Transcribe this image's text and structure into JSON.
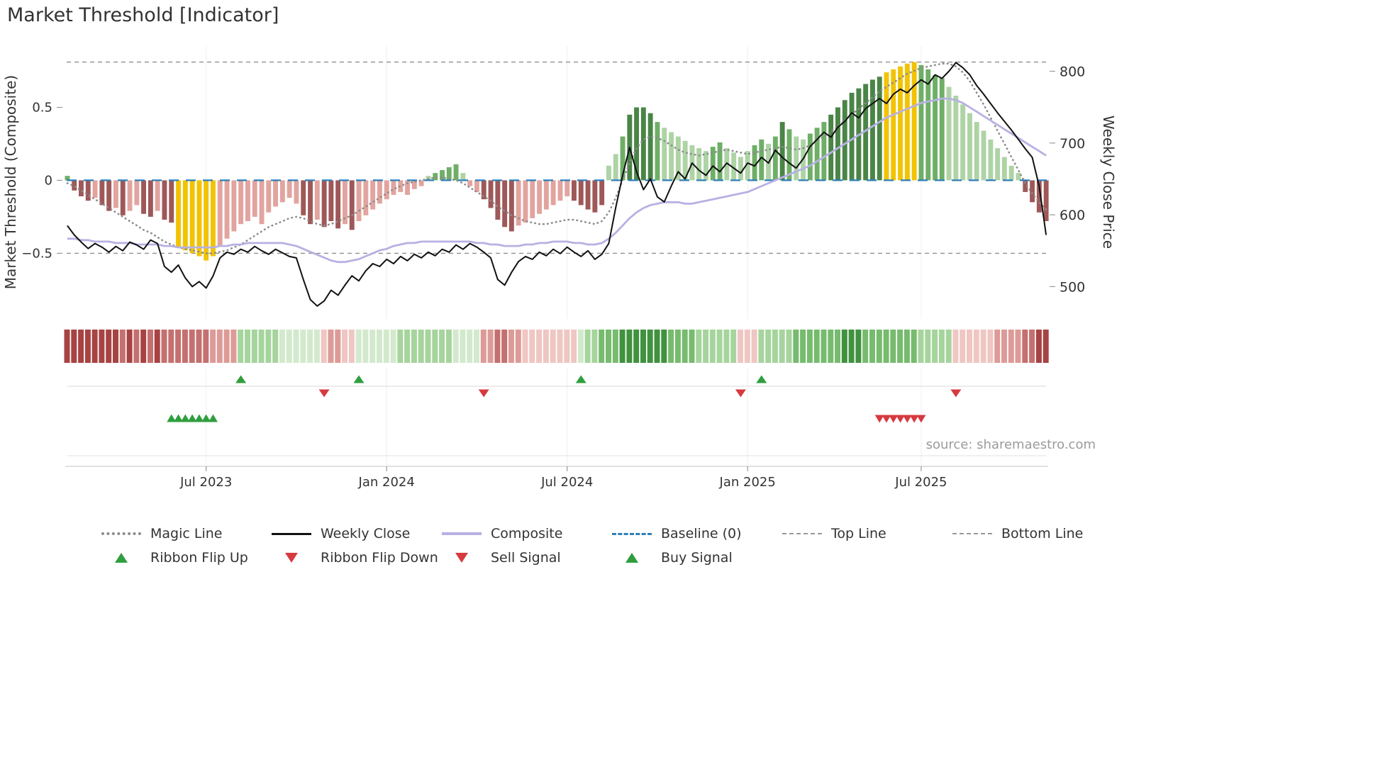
{
  "title": "Market Threshold [Indicator]",
  "source": "source: sharemaestro.com",
  "axes": {
    "left_label": "Market Threshold (Composite)",
    "right_label": "Weekly Close Price",
    "left_ticks": [
      {
        "value": 0.5,
        "label": "0.5"
      },
      {
        "value": 0,
        "label": "0"
      },
      {
        "value": -0.5,
        "label": "−0.5"
      }
    ],
    "right_ticks": [
      {
        "value": 800,
        "label": "800"
      },
      {
        "value": 700,
        "label": "700"
      },
      {
        "value": 600,
        "label": "600"
      },
      {
        "value": 500,
        "label": "500"
      }
    ],
    "x_ticks": [
      {
        "week": 20,
        "label": "Jul 2023"
      },
      {
        "week": 46,
        "label": "Jan 2024"
      },
      {
        "week": 72,
        "label": "Jul 2024"
      },
      {
        "week": 98,
        "label": "Jan 2025"
      },
      {
        "week": 123,
        "label": "Jul 2025"
      }
    ]
  },
  "legend": {
    "row1": [
      {
        "label": "Magic Line",
        "swatch": "dotted-gray"
      },
      {
        "label": "Weekly Close",
        "swatch": "solid-black"
      },
      {
        "label": "Composite",
        "swatch": "solid-lavender"
      },
      {
        "label": "Baseline (0)",
        "swatch": "dashed-blue"
      },
      {
        "label": "Top Line",
        "swatch": "dashed-gray"
      },
      {
        "label": "Bottom Line",
        "swatch": "dashed-gray"
      }
    ],
    "row2": [
      {
        "label": "Ribbon Flip Up",
        "swatch": "triangle-up-green"
      },
      {
        "label": "Ribbon Flip Down",
        "swatch": "triangle-down-red"
      },
      {
        "label": "Sell Signal",
        "swatch": "triangle-down-red"
      },
      {
        "label": "Buy Signal",
        "swatch": "triangle-up-green"
      }
    ]
  },
  "colors": {
    "bar_dark_red": "#9e5858",
    "bar_pink": "#e2a49f",
    "bar_yellow": "#f2c300",
    "bar_light_green": "#aed3a5",
    "bar_mid_green": "#6fae67",
    "bar_dark_green": "#4a8547",
    "ribbon_r1": "#a84343",
    "ribbon_r2": "#c57070",
    "ribbon_r3": "#dd9b97",
    "ribbon_r4": "#efc6c2",
    "ribbon_g1": "#41923f",
    "ribbon_g2": "#77bb6e",
    "ribbon_g3": "#a6d49d",
    "ribbon_g4": "#d3e9cd",
    "weekly_close": "#111111",
    "composite": "#b7b1e2",
    "magic_line": "#8c8c8c",
    "baseline": "#2d7fb8",
    "guide_line": "#999999",
    "signal_green": "#2f9e3e",
    "signal_red": "#d63a3f",
    "grid": "#efefef",
    "text": "#333333",
    "muted_text": "#9b9b9b"
  },
  "chart_data": {
    "type": "combo",
    "description": "Weekly market-threshold indicator: histogram of composite threshold (left axis), weekly close price line (right axis), magic/composite guide lines, momentum ribbon strip and signal marker rows.",
    "frequency": "weekly",
    "x_range_labels": [
      "Jul 2023",
      "Jan 2024",
      "Jul 2024",
      "Jan 2025",
      "Jul 2025"
    ],
    "left_ylim": [
      -0.95,
      0.92
    ],
    "right_ylim": [
      455,
      835
    ],
    "baseline": 0,
    "top_line": 0.81,
    "bottom_line": -0.5,
    "bars": {
      "name": "Market Threshold (Composite) histogram",
      "values": [
        0.03,
        -0.07,
        -0.11,
        -0.14,
        -0.12,
        -0.17,
        -0.21,
        -0.19,
        -0.24,
        -0.21,
        -0.17,
        -0.23,
        -0.25,
        -0.21,
        -0.27,
        -0.29,
        -0.46,
        -0.48,
        -0.5,
        -0.52,
        -0.55,
        -0.52,
        -0.45,
        -0.4,
        -0.35,
        -0.3,
        -0.28,
        -0.25,
        -0.3,
        -0.22,
        -0.18,
        -0.15,
        -0.12,
        -0.16,
        -0.24,
        -0.3,
        -0.27,
        -0.32,
        -0.28,
        -0.33,
        -0.3,
        -0.34,
        -0.28,
        -0.24,
        -0.2,
        -0.16,
        -0.13,
        -0.1,
        -0.08,
        -0.1,
        -0.06,
        -0.04,
        0.03,
        0.05,
        0.07,
        0.09,
        0.11,
        0.05,
        -0.04,
        -0.08,
        -0.13,
        -0.19,
        -0.27,
        -0.32,
        -0.35,
        -0.31,
        -0.29,
        -0.26,
        -0.23,
        -0.2,
        -0.17,
        -0.14,
        -0.11,
        -0.14,
        -0.17,
        -0.2,
        -0.22,
        -0.17,
        0.1,
        0.18,
        0.3,
        0.45,
        0.5,
        0.5,
        0.46,
        0.4,
        0.36,
        0.33,
        0.3,
        0.27,
        0.24,
        0.22,
        0.2,
        0.23,
        0.26,
        0.22,
        0.19,
        0.16,
        0.2,
        0.24,
        0.28,
        0.25,
        0.3,
        0.4,
        0.35,
        0.3,
        0.28,
        0.32,
        0.36,
        0.4,
        0.45,
        0.5,
        0.55,
        0.6,
        0.63,
        0.66,
        0.69,
        0.71,
        0.74,
        0.76,
        0.78,
        0.8,
        0.81,
        0.79,
        0.76,
        0.72,
        0.7,
        0.64,
        0.58,
        0.52,
        0.46,
        0.4,
        0.34,
        0.28,
        0.22,
        0.16,
        0.1,
        0.05,
        -0.08,
        -0.15,
        -0.22,
        -0.28
      ],
      "color_keys": [
        "mg",
        "dr",
        "dr",
        "dr",
        "pr",
        "dr",
        "dr",
        "pr",
        "dr",
        "pr",
        "pr",
        "dr",
        "dr",
        "pr",
        "dr",
        "dr",
        "yl",
        "yl",
        "yl",
        "yl",
        "yl",
        "yl",
        "pr",
        "pr",
        "pr",
        "pr",
        "pr",
        "pr",
        "pr",
        "pr",
        "pr",
        "pr",
        "pr",
        "pr",
        "dr",
        "dr",
        "pr",
        "dr",
        "dr",
        "dr",
        "pr",
        "dr",
        "pr",
        "pr",
        "pr",
        "pr",
        "pr",
        "pr",
        "pr",
        "pr",
        "pr",
        "pr",
        "lg",
        "mg",
        "mg",
        "mg",
        "mg",
        "lg",
        "pr",
        "pr",
        "dr",
        "dr",
        "dr",
        "dr",
        "dr",
        "pr",
        "pr",
        "pr",
        "pr",
        "pr",
        "pr",
        "pr",
        "pr",
        "dr",
        "dr",
        "dr",
        "dr",
        "dr",
        "lg",
        "lg",
        "mg",
        "dg",
        "dg",
        "dg",
        "dg",
        "mg",
        "lg",
        "lg",
        "lg",
        "lg",
        "lg",
        "lg",
        "lg",
        "mg",
        "mg",
        "lg",
        "lg",
        "lg",
        "lg",
        "mg",
        "mg",
        "lg",
        "mg",
        "dg",
        "mg",
        "lg",
        "lg",
        "mg",
        "mg",
        "mg",
        "dg",
        "dg",
        "dg",
        "dg",
        "dg",
        "dg",
        "dg",
        "dg",
        "yl",
        "yl",
        "yl",
        "yl",
        "yl",
        "mg",
        "mg",
        "mg",
        "mg",
        "lg",
        "lg",
        "lg",
        "lg",
        "lg",
        "lg",
        "lg",
        "lg",
        "lg",
        "lg",
        "lg",
        "dr",
        "dr",
        "dr",
        "dr"
      ]
    },
    "weekly_close": [
      585,
      572,
      562,
      553,
      560,
      555,
      548,
      556,
      550,
      562,
      558,
      552,
      565,
      560,
      528,
      520,
      530,
      512,
      500,
      507,
      498,
      515,
      540,
      548,
      545,
      552,
      548,
      556,
      550,
      545,
      552,
      547,
      542,
      540,
      510,
      482,
      473,
      480,
      495,
      488,
      502,
      515,
      508,
      522,
      532,
      528,
      538,
      532,
      542,
      536,
      545,
      540,
      548,
      543,
      552,
      548,
      558,
      552,
      560,
      555,
      548,
      540,
      510,
      502,
      520,
      535,
      542,
      538,
      548,
      543,
      552,
      546,
      555,
      548,
      542,
      550,
      538,
      545,
      560,
      610,
      655,
      694,
      660,
      635,
      650,
      625,
      618,
      640,
      660,
      650,
      672,
      662,
      655,
      668,
      660,
      672,
      665,
      658,
      672,
      668,
      680,
      672,
      690,
      680,
      672,
      665,
      678,
      695,
      705,
      715,
      708,
      722,
      730,
      742,
      735,
      748,
      755,
      762,
      755,
      768,
      775,
      770,
      780,
      788,
      782,
      795,
      790,
      800,
      812,
      805,
      795,
      780,
      768,
      755,
      742,
      730,
      718,
      705,
      692,
      680,
      640,
      572
    ],
    "composite": [
      -0.4,
      -0.4,
      -0.41,
      -0.41,
      -0.42,
      -0.42,
      -0.42,
      -0.43,
      -0.43,
      -0.43,
      -0.44,
      -0.44,
      -0.44,
      -0.44,
      -0.45,
      -0.45,
      -0.46,
      -0.46,
      -0.46,
      -0.46,
      -0.46,
      -0.46,
      -0.45,
      -0.45,
      -0.44,
      -0.44,
      -0.43,
      -0.43,
      -0.43,
      -0.43,
      -0.43,
      -0.43,
      -0.44,
      -0.45,
      -0.47,
      -0.49,
      -0.51,
      -0.53,
      -0.55,
      -0.56,
      -0.56,
      -0.55,
      -0.54,
      -0.52,
      -0.5,
      -0.48,
      -0.47,
      -0.45,
      -0.44,
      -0.43,
      -0.43,
      -0.42,
      -0.42,
      -0.42,
      -0.42,
      -0.42,
      -0.42,
      -0.42,
      -0.42,
      -0.43,
      -0.43,
      -0.44,
      -0.44,
      -0.45,
      -0.45,
      -0.45,
      -0.44,
      -0.44,
      -0.43,
      -0.43,
      -0.42,
      -0.42,
      -0.42,
      -0.43,
      -0.43,
      -0.44,
      -0.44,
      -0.43,
      -0.4,
      -0.36,
      -0.31,
      -0.26,
      -0.22,
      -0.19,
      -0.17,
      -0.16,
      -0.15,
      -0.15,
      -0.15,
      -0.16,
      -0.16,
      -0.15,
      -0.14,
      -0.13,
      -0.12,
      -0.11,
      -0.1,
      -0.09,
      -0.08,
      -0.06,
      -0.04,
      -0.02,
      0,
      0.02,
      0.04,
      0.06,
      0.08,
      0.1,
      0.13,
      0.16,
      0.19,
      0.22,
      0.25,
      0.28,
      0.31,
      0.34,
      0.37,
      0.4,
      0.43,
      0.45,
      0.47,
      0.49,
      0.51,
      0.53,
      0.54,
      0.55,
      0.56,
      0.56,
      0.55,
      0.53,
      0.5,
      0.47,
      0.44,
      0.41,
      0.38,
      0.35,
      0.32,
      0.29,
      0.26,
      0.23,
      0.2,
      0.17
    ],
    "magic_line": [
      -0.02,
      -0.04,
      -0.07,
      -0.1,
      -0.13,
      -0.16,
      -0.19,
      -0.22,
      -0.25,
      -0.28,
      -0.31,
      -0.34,
      -0.36,
      -0.39,
      -0.42,
      -0.44,
      -0.46,
      -0.47,
      -0.48,
      -0.49,
      -0.5,
      -0.5,
      -0.49,
      -0.48,
      -0.46,
      -0.44,
      -0.41,
      -0.38,
      -0.35,
      -0.32,
      -0.3,
      -0.28,
      -0.26,
      -0.25,
      -0.26,
      -0.28,
      -0.3,
      -0.31,
      -0.3,
      -0.28,
      -0.26,
      -0.24,
      -0.21,
      -0.18,
      -0.15,
      -0.12,
      -0.09,
      -0.06,
      -0.04,
      -0.02,
      -0.01,
      0,
      0.01,
      0.02,
      0.02,
      0.01,
      0,
      -0.02,
      -0.05,
      -0.08,
      -0.11,
      -0.14,
      -0.18,
      -0.21,
      -0.24,
      -0.26,
      -0.28,
      -0.29,
      -0.3,
      -0.3,
      -0.29,
      -0.28,
      -0.27,
      -0.27,
      -0.28,
      -0.29,
      -0.3,
      -0.28,
      -0.22,
      -0.12,
      0,
      0.12,
      0.22,
      0.28,
      0.3,
      0.29,
      0.27,
      0.24,
      0.21,
      0.19,
      0.18,
      0.17,
      0.18,
      0.19,
      0.2,
      0.21,
      0.2,
      0.19,
      0.18,
      0.19,
      0.2,
      0.21,
      0.22,
      0.23,
      0.22,
      0.21,
      0.22,
      0.24,
      0.27,
      0.3,
      0.33,
      0.37,
      0.41,
      0.45,
      0.49,
      0.53,
      0.57,
      0.61,
      0.64,
      0.67,
      0.7,
      0.73,
      0.75,
      0.77,
      0.78,
      0.79,
      0.8,
      0.8,
      0.78,
      0.74,
      0.68,
      0.6,
      0.52,
      0.43,
      0.34,
      0.25,
      0.16,
      0.07,
      -0.02,
      -0.09,
      -0.15,
      -0.2
    ],
    "ribbon": [
      "r1",
      "r1",
      "r1",
      "r1",
      "r1",
      "r1",
      "r1",
      "r1",
      "r2",
      "r1",
      "r2",
      "r1",
      "r2",
      "r1",
      "r2",
      "r2",
      "r2",
      "r2",
      "r2",
      "r2",
      "r2",
      "r3",
      "r3",
      "r3",
      "r3",
      "g3",
      "g3",
      "g3",
      "g3",
      "g3",
      "g3",
      "g4",
      "g4",
      "g4",
      "g4",
      "g4",
      "g4",
      "r4",
      "r3",
      "r3",
      "r4",
      "r4",
      "g4",
      "g4",
      "g4",
      "g4",
      "g4",
      "g4",
      "g3",
      "g3",
      "g3",
      "g3",
      "g3",
      "g3",
      "g3",
      "g3",
      "g4",
      "g4",
      "g4",
      "g4",
      "r3",
      "r3",
      "r2",
      "r2",
      "r3",
      "r3",
      "r4",
      "r4",
      "r4",
      "r4",
      "r4",
      "r4",
      "r4",
      "r4",
      "g4",
      "g3",
      "g3",
      "g2",
      "g2",
      "g2",
      "g1",
      "g1",
      "g1",
      "g1",
      "g1",
      "g1",
      "g1",
      "g2",
      "g2",
      "g2",
      "g2",
      "g3",
      "g3",
      "g3",
      "g3",
      "g3",
      "g3",
      "r4",
      "r4",
      "r4",
      "g3",
      "g3",
      "g3",
      "g3",
      "g3",
      "g2",
      "g2",
      "g2",
      "g2",
      "g2",
      "g2",
      "g2",
      "g1",
      "g1",
      "g1",
      "g2",
      "g2",
      "g2",
      "g2",
      "g2",
      "g2",
      "g2",
      "g2",
      "g3",
      "g3",
      "g3",
      "g3",
      "g3",
      "r4",
      "r4",
      "r4",
      "r4",
      "r4",
      "r4",
      "r3",
      "r3",
      "r3",
      "r3",
      "r2",
      "r2",
      "r1",
      "r1"
    ],
    "signals": {
      "ribbon_flip_up_weeks": [
        25,
        42,
        74,
        100
      ],
      "ribbon_flip_down_weeks": [
        37,
        60,
        97,
        128
      ],
      "buy_signal_weeks": [
        15,
        16,
        17,
        18,
        19,
        20,
        21
      ],
      "sell_signal_weeks": [
        117,
        118,
        119,
        120,
        121,
        122,
        123
      ]
    }
  }
}
